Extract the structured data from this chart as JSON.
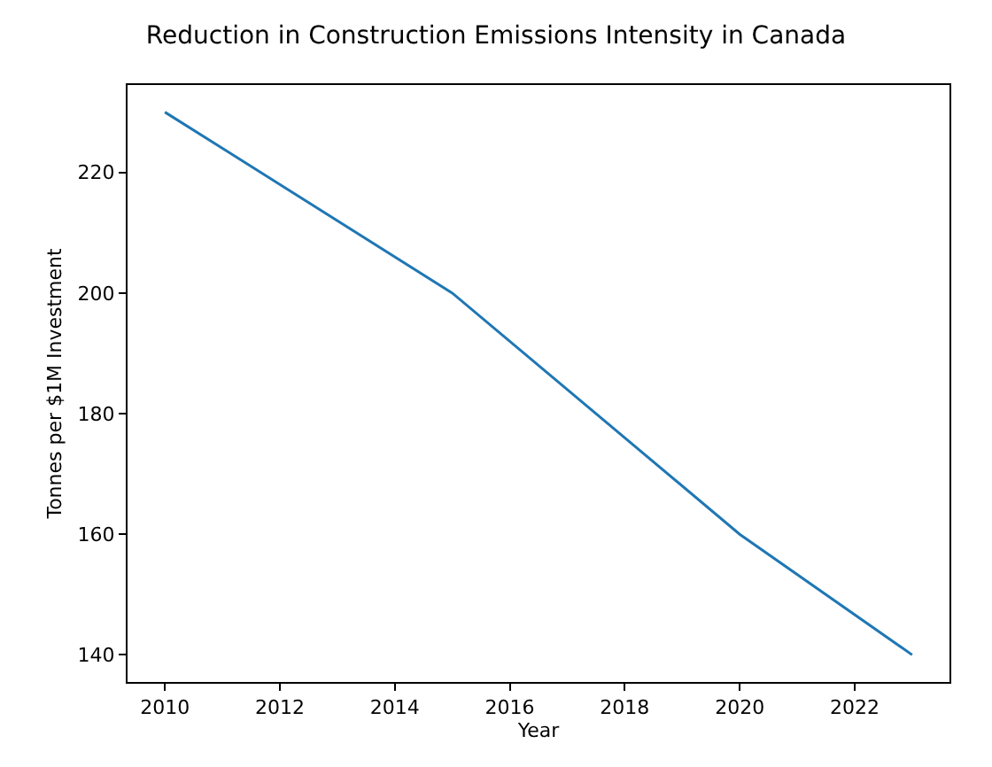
{
  "chart_data": {
    "type": "line",
    "title": "Reduction in Construction Emissions Intensity in Canada",
    "xlabel": "Year",
    "ylabel": "Tonnes per $1M Investment",
    "x": [
      2010,
      2015,
      2020,
      2023
    ],
    "series": [
      {
        "color": "#1f77b4",
        "values": [
          230,
          200,
          160,
          140
        ]
      }
    ],
    "xlim": [
      2009.35,
      2023.65
    ],
    "xticks": [
      2010,
      2012,
      2014,
      2016,
      2018,
      2020,
      2022
    ],
    "ylim": [
      135.5,
      234.5
    ],
    "yticks": [
      140,
      160,
      180,
      200,
      220
    ],
    "marker": "none",
    "line_style": "solid"
  }
}
